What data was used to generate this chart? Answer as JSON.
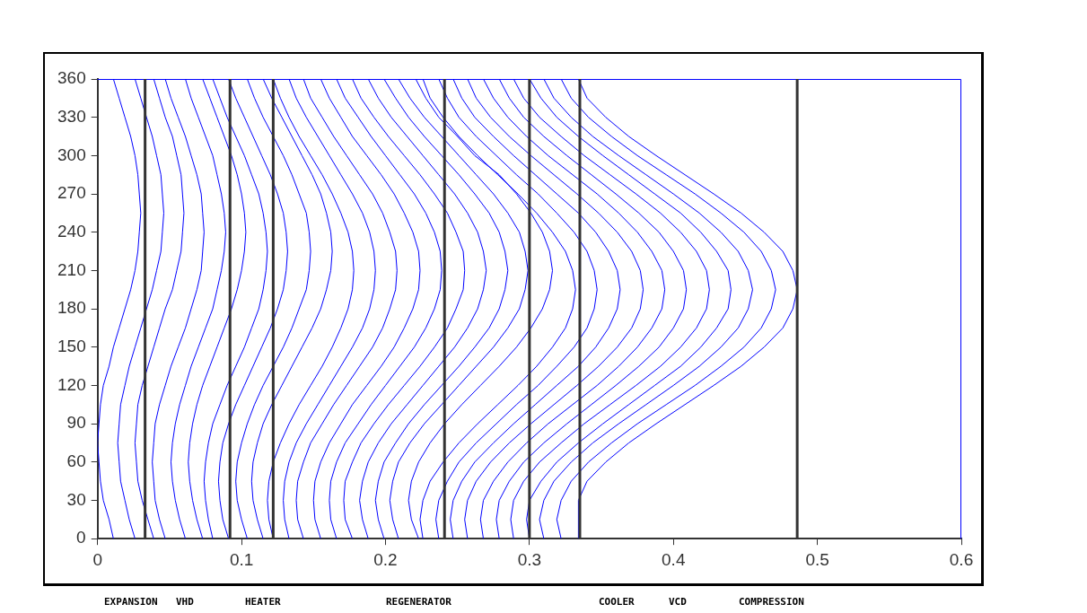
{
  "chart_data": {
    "type": "line",
    "xlim": [
      0,
      0.6
    ],
    "xticks": [
      0,
      0.1,
      0.2,
      0.3,
      0.4,
      0.5,
      0.6
    ],
    "ylim": [
      0,
      360
    ],
    "yticks": [
      0,
      30,
      60,
      90,
      120,
      150,
      180,
      210,
      240,
      270,
      300,
      330,
      360
    ],
    "grid": false,
    "legend": false,
    "marker": "none",
    "line_style": "solid",
    "ref_lines": [
      {
        "axis": "x",
        "value": 0.033,
        "color": "#333333"
      },
      {
        "axis": "x",
        "value": 0.092,
        "color": "#333333"
      },
      {
        "axis": "x",
        "value": 0.122,
        "color": "#333333"
      },
      {
        "axis": "x",
        "value": 0.241,
        "color": "#333333"
      },
      {
        "axis": "x",
        "value": 0.3,
        "color": "#333333"
      },
      {
        "axis": "x",
        "value": 0.335,
        "color": "#333333"
      },
      {
        "axis": "x",
        "value": 0.486,
        "color": "#333333"
      }
    ],
    "annotations": [
      "EXPANSION",
      "VHD",
      "HEATER",
      "REGENERATOR",
      "COOLER",
      "VCD",
      "COMPRESSION"
    ],
    "series": [
      {
        "color": "#0000ff",
        "x": [
          0.011,
          0.008,
          0.004,
          0.002,
          0.001,
          0,
          0.001,
          0.002,
          0.004,
          0.008,
          0.011,
          0.015,
          0.019,
          0.023,
          0.026,
          0.028,
          0.029,
          0.03,
          0.029,
          0.028,
          0.026,
          0.023,
          0.019,
          0.015,
          0.011
        ],
        "values": [
          0,
          15,
          30,
          45,
          60,
          75,
          90,
          105,
          120,
          135,
          150,
          165,
          180,
          195,
          210,
          225,
          240,
          255,
          270,
          285,
          300,
          315,
          330,
          345,
          360
        ]
      },
      {
        "color": "#0000ff",
        "x": [
          0.026,
          0.022,
          0.019,
          0.016,
          0.015,
          0.014,
          0.015,
          0.016,
          0.019,
          0.022,
          0.026,
          0.03,
          0.034,
          0.038,
          0.041,
          0.044,
          0.045,
          0.046,
          0.045,
          0.044,
          0.041,
          0.038,
          0.034,
          0.03,
          0.026
        ],
        "values": [
          0,
          15,
          30,
          45,
          60,
          75,
          90,
          105,
          120,
          135,
          150,
          165,
          180,
          195,
          210,
          225,
          240,
          255,
          270,
          285,
          300,
          315,
          330,
          345,
          360
        ]
      },
      {
        "color": "#0000ff",
        "x": [
          0.039,
          0.035,
          0.031,
          0.028,
          0.027,
          0.026,
          0.027,
          0.028,
          0.031,
          0.035,
          0.039,
          0.043,
          0.047,
          0.052,
          0.055,
          0.058,
          0.059,
          0.06,
          0.059,
          0.058,
          0.055,
          0.052,
          0.047,
          0.043,
          0.039
        ],
        "values": [
          0,
          15,
          30,
          45,
          60,
          75,
          90,
          105,
          120,
          135,
          150,
          165,
          180,
          195,
          210,
          225,
          240,
          255,
          270,
          285,
          300,
          315,
          330,
          345,
          360
        ]
      },
      {
        "color": "#0000ff",
        "x": [
          0.047,
          0.043,
          0.04,
          0.039,
          0.038,
          0.039,
          0.04,
          0.043,
          0.047,
          0.051,
          0.056,
          0.061,
          0.065,
          0.069,
          0.072,
          0.073,
          0.074,
          0.073,
          0.072,
          0.069,
          0.065,
          0.061,
          0.056,
          0.051,
          0.047
        ],
        "values": [
          0,
          15,
          30,
          45,
          60,
          75,
          90,
          105,
          120,
          135,
          150,
          165,
          180,
          195,
          210,
          225,
          240,
          255,
          270,
          285,
          300,
          315,
          330,
          345,
          360
        ]
      },
      {
        "color": "#0000ff",
        "x": [
          0.061,
          0.057,
          0.054,
          0.052,
          0.051,
          0.052,
          0.054,
          0.057,
          0.061,
          0.065,
          0.07,
          0.075,
          0.08,
          0.083,
          0.086,
          0.088,
          0.089,
          0.088,
          0.086,
          0.083,
          0.08,
          0.075,
          0.07,
          0.065,
          0.061
        ],
        "values": [
          0,
          15,
          30,
          45,
          60,
          75,
          90,
          105,
          120,
          135,
          150,
          165,
          180,
          195,
          210,
          225,
          240,
          255,
          270,
          285,
          300,
          315,
          330,
          345,
          360
        ]
      },
      {
        "color": "#0000ff",
        "x": [
          0.073,
          0.069,
          0.066,
          0.064,
          0.063,
          0.064,
          0.066,
          0.069,
          0.073,
          0.078,
          0.083,
          0.088,
          0.093,
          0.097,
          0.1,
          0.102,
          0.103,
          0.102,
          0.1,
          0.097,
          0.093,
          0.088,
          0.083,
          0.078,
          0.073
        ],
        "values": [
          0,
          15,
          30,
          45,
          60,
          75,
          90,
          105,
          120,
          135,
          150,
          165,
          180,
          195,
          210,
          225,
          240,
          255,
          270,
          285,
          300,
          315,
          330,
          345,
          360
        ]
      },
      {
        "color": "#0000ff",
        "x": [
          0.08,
          0.077,
          0.075,
          0.074,
          0.075,
          0.077,
          0.08,
          0.085,
          0.09,
          0.096,
          0.102,
          0.107,
          0.112,
          0.115,
          0.117,
          0.118,
          0.117,
          0.115,
          0.112,
          0.107,
          0.102,
          0.096,
          0.09,
          0.085,
          0.08
        ],
        "values": [
          0,
          15,
          30,
          45,
          60,
          75,
          90,
          105,
          120,
          135,
          150,
          165,
          180,
          195,
          210,
          225,
          240,
          255,
          270,
          285,
          300,
          315,
          330,
          345,
          360
        ]
      },
      {
        "color": "#0000ff",
        "x": [
          0.091,
          0.087,
          0.085,
          0.084,
          0.085,
          0.087,
          0.091,
          0.096,
          0.102,
          0.108,
          0.114,
          0.12,
          0.125,
          0.129,
          0.131,
          0.132,
          0.131,
          0.129,
          0.125,
          0.12,
          0.114,
          0.108,
          0.102,
          0.096,
          0.091
        ],
        "values": [
          0,
          15,
          30,
          45,
          60,
          75,
          90,
          105,
          120,
          135,
          150,
          165,
          180,
          195,
          210,
          225,
          240,
          255,
          270,
          285,
          300,
          315,
          330,
          345,
          360
        ]
      },
      {
        "color": "#0000ff",
        "x": [
          0.104,
          0.1,
          0.097,
          0.096,
          0.097,
          0.1,
          0.104,
          0.109,
          0.115,
          0.122,
          0.129,
          0.135,
          0.14,
          0.145,
          0.147,
          0.148,
          0.147,
          0.145,
          0.14,
          0.135,
          0.129,
          0.122,
          0.115,
          0.109,
          0.104
        ],
        "values": [
          0,
          15,
          30,
          45,
          60,
          75,
          90,
          105,
          120,
          135,
          150,
          165,
          180,
          195,
          210,
          225,
          240,
          255,
          270,
          285,
          300,
          315,
          330,
          345,
          360
        ]
      },
      {
        "color": "#0000ff",
        "x": [
          0.115,
          0.111,
          0.108,
          0.107,
          0.108,
          0.111,
          0.115,
          0.121,
          0.128,
          0.135,
          0.142,
          0.149,
          0.155,
          0.159,
          0.162,
          0.163,
          0.162,
          0.159,
          0.155,
          0.149,
          0.142,
          0.135,
          0.128,
          0.121,
          0.115
        ],
        "values": [
          0,
          15,
          30,
          45,
          60,
          75,
          90,
          105,
          120,
          135,
          150,
          165,
          180,
          195,
          210,
          225,
          240,
          255,
          270,
          285,
          300,
          315,
          330,
          345,
          360
        ]
      },
      {
        "color": "#0000ff",
        "x": [
          0.122,
          0.119,
          0.118,
          0.119,
          0.122,
          0.127,
          0.133,
          0.14,
          0.148,
          0.156,
          0.163,
          0.169,
          0.174,
          0.177,
          0.178,
          0.177,
          0.174,
          0.169,
          0.163,
          0.156,
          0.148,
          0.14,
          0.133,
          0.127,
          0.122
        ],
        "values": [
          0,
          15,
          30,
          45,
          60,
          75,
          90,
          105,
          120,
          135,
          150,
          165,
          180,
          195,
          210,
          225,
          240,
          255,
          270,
          285,
          300,
          315,
          330,
          345,
          360
        ]
      },
      {
        "color": "#0000ff",
        "x": [
          0.133,
          0.13,
          0.129,
          0.13,
          0.133,
          0.138,
          0.145,
          0.153,
          0.161,
          0.169,
          0.177,
          0.184,
          0.189,
          0.192,
          0.193,
          0.192,
          0.189,
          0.184,
          0.177,
          0.169,
          0.161,
          0.153,
          0.145,
          0.138,
          0.133
        ],
        "values": [
          0,
          15,
          30,
          45,
          60,
          75,
          90,
          105,
          120,
          135,
          150,
          165,
          180,
          195,
          210,
          225,
          240,
          255,
          270,
          285,
          300,
          315,
          330,
          345,
          360
        ]
      },
      {
        "color": "#0000ff",
        "x": [
          0.143,
          0.139,
          0.138,
          0.139,
          0.143,
          0.148,
          0.156,
          0.164,
          0.173,
          0.182,
          0.191,
          0.198,
          0.203,
          0.207,
          0.208,
          0.207,
          0.203,
          0.198,
          0.191,
          0.182,
          0.173,
          0.164,
          0.156,
          0.148,
          0.143
        ],
        "values": [
          0,
          15,
          30,
          45,
          60,
          75,
          90,
          105,
          120,
          135,
          150,
          165,
          180,
          195,
          210,
          225,
          240,
          255,
          270,
          285,
          300,
          315,
          330,
          345,
          360
        ]
      },
      {
        "color": "#0000ff",
        "x": [
          0.155,
          0.151,
          0.15,
          0.151,
          0.155,
          0.161,
          0.169,
          0.177,
          0.187,
          0.197,
          0.206,
          0.213,
          0.219,
          0.223,
          0.224,
          0.223,
          0.219,
          0.213,
          0.206,
          0.197,
          0.187,
          0.177,
          0.169,
          0.161,
          0.155
        ],
        "values": [
          0,
          15,
          30,
          45,
          60,
          75,
          90,
          105,
          120,
          135,
          150,
          165,
          180,
          195,
          210,
          225,
          240,
          255,
          270,
          285,
          300,
          315,
          330,
          345,
          360
        ]
      },
      {
        "color": "#0000ff",
        "x": [
          0.166,
          0.162,
          0.161,
          0.162,
          0.166,
          0.172,
          0.181,
          0.19,
          0.2,
          0.21,
          0.22,
          0.228,
          0.234,
          0.238,
          0.239,
          0.238,
          0.234,
          0.228,
          0.22,
          0.21,
          0.2,
          0.19,
          0.181,
          0.172,
          0.166
        ],
        "values": [
          0,
          15,
          30,
          45,
          60,
          75,
          90,
          105,
          120,
          135,
          150,
          165,
          180,
          195,
          210,
          225,
          240,
          255,
          270,
          285,
          300,
          315,
          330,
          345,
          360
        ]
      },
      {
        "color": "#0000ff",
        "x": [
          0.177,
          0.172,
          0.171,
          0.172,
          0.177,
          0.183,
          0.192,
          0.202,
          0.213,
          0.224,
          0.234,
          0.243,
          0.249,
          0.254,
          0.255,
          0.254,
          0.249,
          0.243,
          0.234,
          0.224,
          0.213,
          0.202,
          0.192,
          0.183,
          0.177
        ],
        "values": [
          0,
          15,
          30,
          45,
          60,
          75,
          90,
          105,
          120,
          135,
          150,
          165,
          180,
          195,
          210,
          225,
          240,
          255,
          270,
          285,
          300,
          315,
          330,
          345,
          360
        ]
      },
      {
        "color": "#0000ff",
        "x": [
          0.188,
          0.184,
          0.182,
          0.184,
          0.188,
          0.195,
          0.204,
          0.215,
          0.226,
          0.237,
          0.248,
          0.257,
          0.264,
          0.268,
          0.27,
          0.268,
          0.264,
          0.257,
          0.248,
          0.237,
          0.226,
          0.215,
          0.204,
          0.195,
          0.188
        ],
        "values": [
          0,
          15,
          30,
          45,
          60,
          75,
          90,
          105,
          120,
          135,
          150,
          165,
          180,
          195,
          210,
          225,
          240,
          255,
          270,
          285,
          300,
          315,
          330,
          345,
          360
        ]
      },
      {
        "color": "#0000ff",
        "x": [
          0.199,
          0.195,
          0.193,
          0.195,
          0.199,
          0.207,
          0.216,
          0.227,
          0.239,
          0.251,
          0.262,
          0.272,
          0.279,
          0.283,
          0.285,
          0.283,
          0.279,
          0.272,
          0.262,
          0.251,
          0.239,
          0.227,
          0.216,
          0.207,
          0.199
        ],
        "values": [
          0,
          15,
          30,
          45,
          60,
          75,
          90,
          105,
          120,
          135,
          150,
          165,
          180,
          195,
          210,
          225,
          240,
          255,
          270,
          285,
          300,
          315,
          330,
          345,
          360
        ]
      },
      {
        "color": "#0000ff",
        "x": [
          0.209,
          0.205,
          0.203,
          0.205,
          0.209,
          0.217,
          0.227,
          0.239,
          0.251,
          0.263,
          0.275,
          0.285,
          0.293,
          0.297,
          0.299,
          0.297,
          0.293,
          0.285,
          0.275,
          0.263,
          0.251,
          0.239,
          0.227,
          0.217,
          0.209
        ],
        "values": [
          0,
          15,
          30,
          45,
          60,
          75,
          90,
          105,
          120,
          135,
          150,
          165,
          180,
          195,
          210,
          225,
          240,
          255,
          270,
          285,
          300,
          315,
          330,
          345,
          360
        ]
      },
      {
        "color": "#0000ff",
        "x": [
          0.223,
          0.218,
          0.216,
          0.218,
          0.223,
          0.231,
          0.241,
          0.253,
          0.266,
          0.279,
          0.291,
          0.301,
          0.309,
          0.314,
          0.316,
          0.314,
          0.309,
          0.301,
          0.291,
          0.279,
          0.262,
          0.25,
          0.237,
          0.228,
          0.221
        ],
        "values": [
          0,
          15,
          30,
          45,
          60,
          75,
          90,
          105,
          120,
          135,
          150,
          165,
          180,
          195,
          210,
          225,
          240,
          255,
          270,
          285,
          300,
          315,
          330,
          345,
          360
        ]
      },
      {
        "color": "#0000ff",
        "x": [
          0.226,
          0.224,
          0.226,
          0.231,
          0.24,
          0.251,
          0.264,
          0.278,
          0.292,
          0.305,
          0.316,
          0.325,
          0.33,
          0.332,
          0.33,
          0.325,
          0.316,
          0.305,
          0.292,
          0.278,
          0.264,
          0.251,
          0.24,
          0.231,
          0.226
        ],
        "values": [
          0,
          15,
          30,
          45,
          60,
          75,
          90,
          105,
          120,
          135,
          150,
          165,
          180,
          195,
          210,
          225,
          240,
          255,
          270,
          285,
          300,
          315,
          330,
          345,
          360
        ]
      },
      {
        "color": "#0000ff",
        "x": [
          0.237,
          0.235,
          0.237,
          0.243,
          0.251,
          0.263,
          0.277,
          0.291,
          0.306,
          0.319,
          0.331,
          0.34,
          0.345,
          0.347,
          0.345,
          0.34,
          0.331,
          0.319,
          0.306,
          0.291,
          0.277,
          0.263,
          0.251,
          0.243,
          0.237
        ],
        "values": [
          0,
          15,
          30,
          45,
          60,
          75,
          90,
          105,
          120,
          135,
          150,
          165,
          180,
          195,
          210,
          225,
          240,
          255,
          270,
          285,
          300,
          315,
          330,
          345,
          360
        ]
      },
      {
        "color": "#0000ff",
        "x": [
          0.247,
          0.245,
          0.247,
          0.253,
          0.262,
          0.275,
          0.289,
          0.304,
          0.319,
          0.334,
          0.346,
          0.355,
          0.361,
          0.363,
          0.361,
          0.355,
          0.346,
          0.334,
          0.319,
          0.304,
          0.289,
          0.275,
          0.262,
          0.253,
          0.247
        ],
        "values": [
          0,
          15,
          30,
          45,
          60,
          75,
          90,
          105,
          120,
          135,
          150,
          165,
          180,
          195,
          210,
          225,
          240,
          255,
          270,
          285,
          300,
          315,
          330,
          345,
          360
        ]
      },
      {
        "color": "#0000ff",
        "x": [
          0.257,
          0.255,
          0.257,
          0.263,
          0.273,
          0.286,
          0.301,
          0.317,
          0.333,
          0.348,
          0.361,
          0.371,
          0.377,
          0.379,
          0.377,
          0.371,
          0.361,
          0.348,
          0.333,
          0.317,
          0.301,
          0.286,
          0.273,
          0.263,
          0.257
        ],
        "values": [
          0,
          15,
          30,
          45,
          60,
          75,
          90,
          105,
          120,
          135,
          150,
          165,
          180,
          195,
          210,
          225,
          240,
          255,
          270,
          285,
          300,
          315,
          330,
          345,
          360
        ]
      },
      {
        "color": "#0000ff",
        "x": [
          0.268,
          0.266,
          0.268,
          0.275,
          0.285,
          0.298,
          0.313,
          0.33,
          0.347,
          0.362,
          0.375,
          0.385,
          0.392,
          0.394,
          0.392,
          0.385,
          0.375,
          0.362,
          0.347,
          0.33,
          0.313,
          0.298,
          0.285,
          0.275,
          0.268
        ],
        "values": [
          0,
          15,
          30,
          45,
          60,
          75,
          90,
          105,
          120,
          135,
          150,
          165,
          180,
          195,
          210,
          225,
          240,
          255,
          270,
          285,
          300,
          315,
          330,
          345,
          360
        ]
      },
      {
        "color": "#0000ff",
        "x": [
          0.279,
          0.277,
          0.279,
          0.286,
          0.296,
          0.31,
          0.326,
          0.343,
          0.36,
          0.376,
          0.39,
          0.4,
          0.407,
          0.409,
          0.407,
          0.4,
          0.39,
          0.376,
          0.36,
          0.343,
          0.326,
          0.31,
          0.296,
          0.286,
          0.279
        ],
        "values": [
          0,
          15,
          30,
          45,
          60,
          75,
          90,
          105,
          120,
          135,
          150,
          165,
          180,
          195,
          210,
          225,
          240,
          255,
          270,
          285,
          300,
          315,
          330,
          345,
          360
        ]
      },
      {
        "color": "#0000ff",
        "x": [
          0.289,
          0.287,
          0.289,
          0.296,
          0.307,
          0.322,
          0.338,
          0.356,
          0.374,
          0.391,
          0.405,
          0.416,
          0.423,
          0.425,
          0.423,
          0.416,
          0.405,
          0.391,
          0.374,
          0.356,
          0.338,
          0.322,
          0.307,
          0.296,
          0.289
        ],
        "values": [
          0,
          15,
          30,
          45,
          60,
          75,
          90,
          105,
          120,
          135,
          150,
          165,
          180,
          195,
          210,
          225,
          240,
          255,
          270,
          285,
          300,
          315,
          330,
          345,
          360
        ]
      },
      {
        "color": "#0000ff",
        "x": [
          0.3,
          0.298,
          0.3,
          0.308,
          0.319,
          0.334,
          0.351,
          0.369,
          0.387,
          0.405,
          0.419,
          0.43,
          0.438,
          0.44,
          0.438,
          0.43,
          0.419,
          0.405,
          0.387,
          0.369,
          0.351,
          0.334,
          0.319,
          0.308,
          0.3
        ],
        "values": [
          0,
          15,
          30,
          45,
          60,
          75,
          90,
          105,
          120,
          135,
          150,
          165,
          180,
          195,
          210,
          225,
          240,
          255,
          270,
          285,
          300,
          315,
          330,
          345,
          360
        ]
      },
      {
        "color": "#0000ff",
        "x": [
          0.31,
          0.307,
          0.31,
          0.317,
          0.329,
          0.344,
          0.362,
          0.381,
          0.4,
          0.418,
          0.433,
          0.445,
          0.452,
          0.455,
          0.452,
          0.445,
          0.433,
          0.418,
          0.4,
          0.381,
          0.362,
          0.344,
          0.329,
          0.317,
          0.31
        ],
        "values": [
          0,
          15,
          30,
          45,
          60,
          75,
          90,
          105,
          120,
          135,
          150,
          165,
          180,
          195,
          210,
          225,
          240,
          255,
          270,
          285,
          300,
          315,
          330,
          345,
          360
        ]
      },
      {
        "color": "#0000ff",
        "x": [
          0.322,
          0.319,
          0.322,
          0.329,
          0.341,
          0.357,
          0.375,
          0.395,
          0.415,
          0.433,
          0.449,
          0.461,
          0.468,
          0.471,
          0.468,
          0.461,
          0.449,
          0.433,
          0.415,
          0.395,
          0.375,
          0.357,
          0.341,
          0.329,
          0.322
        ],
        "values": [
          0,
          15,
          30,
          45,
          60,
          75,
          90,
          105,
          120,
          135,
          150,
          165,
          180,
          195,
          210,
          225,
          240,
          255,
          270,
          285,
          300,
          315,
          330,
          345,
          360
        ]
      },
      {
        "color": "#0000ff",
        "x": [
          0.334,
          0.334,
          0.34,
          0.353,
          0.369,
          0.388,
          0.408,
          0.428,
          0.447,
          0.463,
          0.476,
          0.483,
          0.486,
          0.483,
          0.476,
          0.463,
          0.447,
          0.428,
          0.408,
          0.388,
          0.369,
          0.353,
          0.34,
          0.334
        ],
        "values": [
          0,
          30,
          45,
          60,
          75,
          90,
          105,
          120,
          135,
          150,
          165,
          180,
          195,
          210,
          225,
          240,
          255,
          270,
          285,
          300,
          315,
          330,
          345,
          360
        ]
      }
    ]
  }
}
